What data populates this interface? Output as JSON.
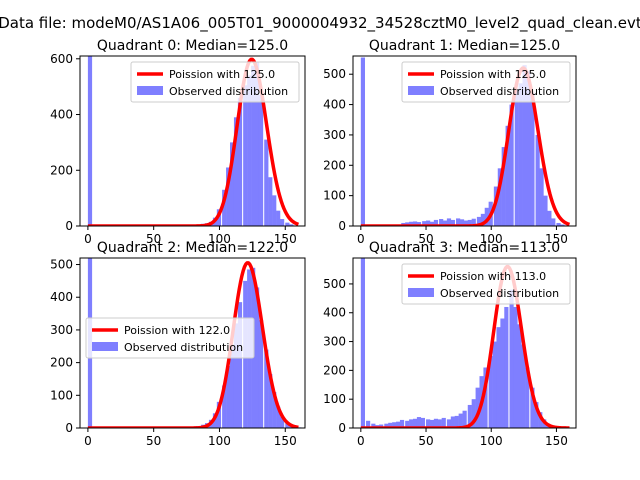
{
  "suptitle": "Data file: modeM0/AS1A06_005T01_9000004932_34528cztM0_level2_quad_clean.evt",
  "colors": {
    "fit_line": "#ff0000",
    "hist_bar": "#7f7fff",
    "axes": "#000000",
    "background": "#ffffff"
  },
  "chart_data": [
    {
      "type": "bar",
      "title": "Quadrant 0: Median=125.0",
      "xlim": [
        -6,
        165
      ],
      "ylim": [
        0,
        610
      ],
      "xticks": [
        0,
        50,
        100,
        150
      ],
      "yticks": [
        0,
        200,
        400,
        600
      ],
      "legend_loc": "upper-right",
      "hist": {
        "name": "Observed distribution",
        "bin_width": 3.2,
        "x": [
          0,
          73,
          76,
          79,
          82,
          86,
          89,
          92,
          95,
          98,
          102,
          105,
          108,
          111,
          114,
          118,
          121,
          124,
          127,
          130,
          134,
          137,
          140,
          143,
          146,
          150,
          153,
          156,
          159
        ],
        "y": [
          610,
          1,
          2,
          3,
          5,
          8,
          10,
          15,
          30,
          60,
          130,
          210,
          300,
          390,
          460,
          505,
          540,
          575,
          590,
          470,
          310,
          175,
          110,
          55,
          25,
          12,
          6,
          2,
          1
        ]
      },
      "fit": {
        "name": "Poission with 125.0",
        "lambda": 125.0,
        "scale": 598,
        "x_range": [
          0,
          160
        ]
      }
    },
    {
      "type": "bar",
      "title": "Quadrant 1: Median=125.0",
      "xlim": [
        -6,
        165
      ],
      "ylim": [
        0,
        560
      ],
      "xticks": [
        0,
        50,
        100,
        150
      ],
      "yticks": [
        0,
        100,
        200,
        300,
        400,
        500
      ],
      "legend_loc": "upper-right",
      "hist": {
        "name": "Observed distribution",
        "bin_width": 3.2,
        "x": [
          0,
          31,
          34,
          37,
          40,
          43,
          47,
          50,
          53,
          56,
          60,
          63,
          66,
          69,
          73,
          76,
          79,
          82,
          85,
          89,
          92,
          95,
          98,
          102,
          105,
          108,
          111,
          114,
          118,
          121,
          124,
          127,
          130,
          134,
          137,
          140,
          143,
          146,
          150,
          153,
          156
        ],
        "y": [
          555,
          10,
          12,
          14,
          15,
          13,
          16,
          18,
          14,
          20,
          23,
          18,
          25,
          20,
          25,
          22,
          18,
          20,
          24,
          30,
          40,
          60,
          80,
          130,
          190,
          260,
          330,
          400,
          450,
          470,
          530,
          510,
          440,
          300,
          190,
          100,
          50,
          25,
          10,
          5,
          2
        ]
      },
      "fit": {
        "name": "Poission with 125.0",
        "lambda": 125.0,
        "scale": 520,
        "x_range": [
          0,
          160
        ]
      }
    },
    {
      "type": "bar",
      "title": "Quadrant 2: Median=122.0",
      "xlim": [
        -6,
        165
      ],
      "ylim": [
        0,
        520
      ],
      "xticks": [
        0,
        50,
        100,
        150
      ],
      "yticks": [
        0,
        100,
        200,
        300,
        400,
        500
      ],
      "legend_loc": "center-left",
      "hist": {
        "name": "Observed distribution",
        "bin_width": 3.2,
        "x": [
          0,
          73,
          76,
          79,
          82,
          86,
          89,
          92,
          95,
          98,
          102,
          105,
          108,
          111,
          114,
          118,
          121,
          124,
          127,
          130,
          134,
          137,
          140,
          143,
          146,
          150,
          153,
          156,
          159
        ],
        "y": [
          520,
          2,
          3,
          4,
          6,
          10,
          15,
          25,
          45,
          80,
          130,
          190,
          255,
          320,
          385,
          450,
          485,
          490,
          430,
          330,
          240,
          165,
          110,
          65,
          35,
          18,
          8,
          4,
          2
        ]
      },
      "fit": {
        "name": "Poission with 122.0",
        "lambda": 122.0,
        "scale": 505,
        "x_range": [
          0,
          160
        ]
      }
    },
    {
      "type": "bar",
      "title": "Quadrant 3: Median=113.0",
      "xlim": [
        -6,
        165
      ],
      "ylim": [
        0,
        590
      ],
      "xticks": [
        0,
        50,
        100,
        150
      ],
      "yticks": [
        0,
        100,
        200,
        300,
        400,
        500
      ],
      "legend_loc": "upper-right",
      "hist": {
        "name": "Observed distribution",
        "bin_width": 3.2,
        "x": [
          0,
          4,
          8,
          11,
          14,
          18,
          21,
          24,
          27,
          30,
          34,
          37,
          40,
          43,
          46,
          50,
          53,
          56,
          59,
          62,
          66,
          69,
          72,
          75,
          78,
          82,
          85,
          88,
          91,
          94,
          98,
          101,
          104,
          107,
          110,
          114,
          117,
          120,
          123,
          126,
          130,
          133,
          136,
          139,
          142,
          146,
          149,
          152,
          155
        ],
        "y": [
          590,
          25,
          15,
          10,
          12,
          15,
          18,
          20,
          22,
          28,
          25,
          30,
          32,
          38,
          35,
          30,
          28,
          32,
          30,
          35,
          30,
          40,
          42,
          50,
          60,
          80,
          100,
          140,
          180,
          210,
          250,
          300,
          350,
          380,
          420,
          480,
          420,
          360,
          290,
          210,
          140,
          90,
          55,
          30,
          15,
          8,
          4,
          2,
          1
        ]
      },
      "fit": {
        "name": "Poission with 113.0",
        "lambda": 113.0,
        "scale": 560,
        "x_range": [
          0,
          160
        ]
      }
    }
  ]
}
